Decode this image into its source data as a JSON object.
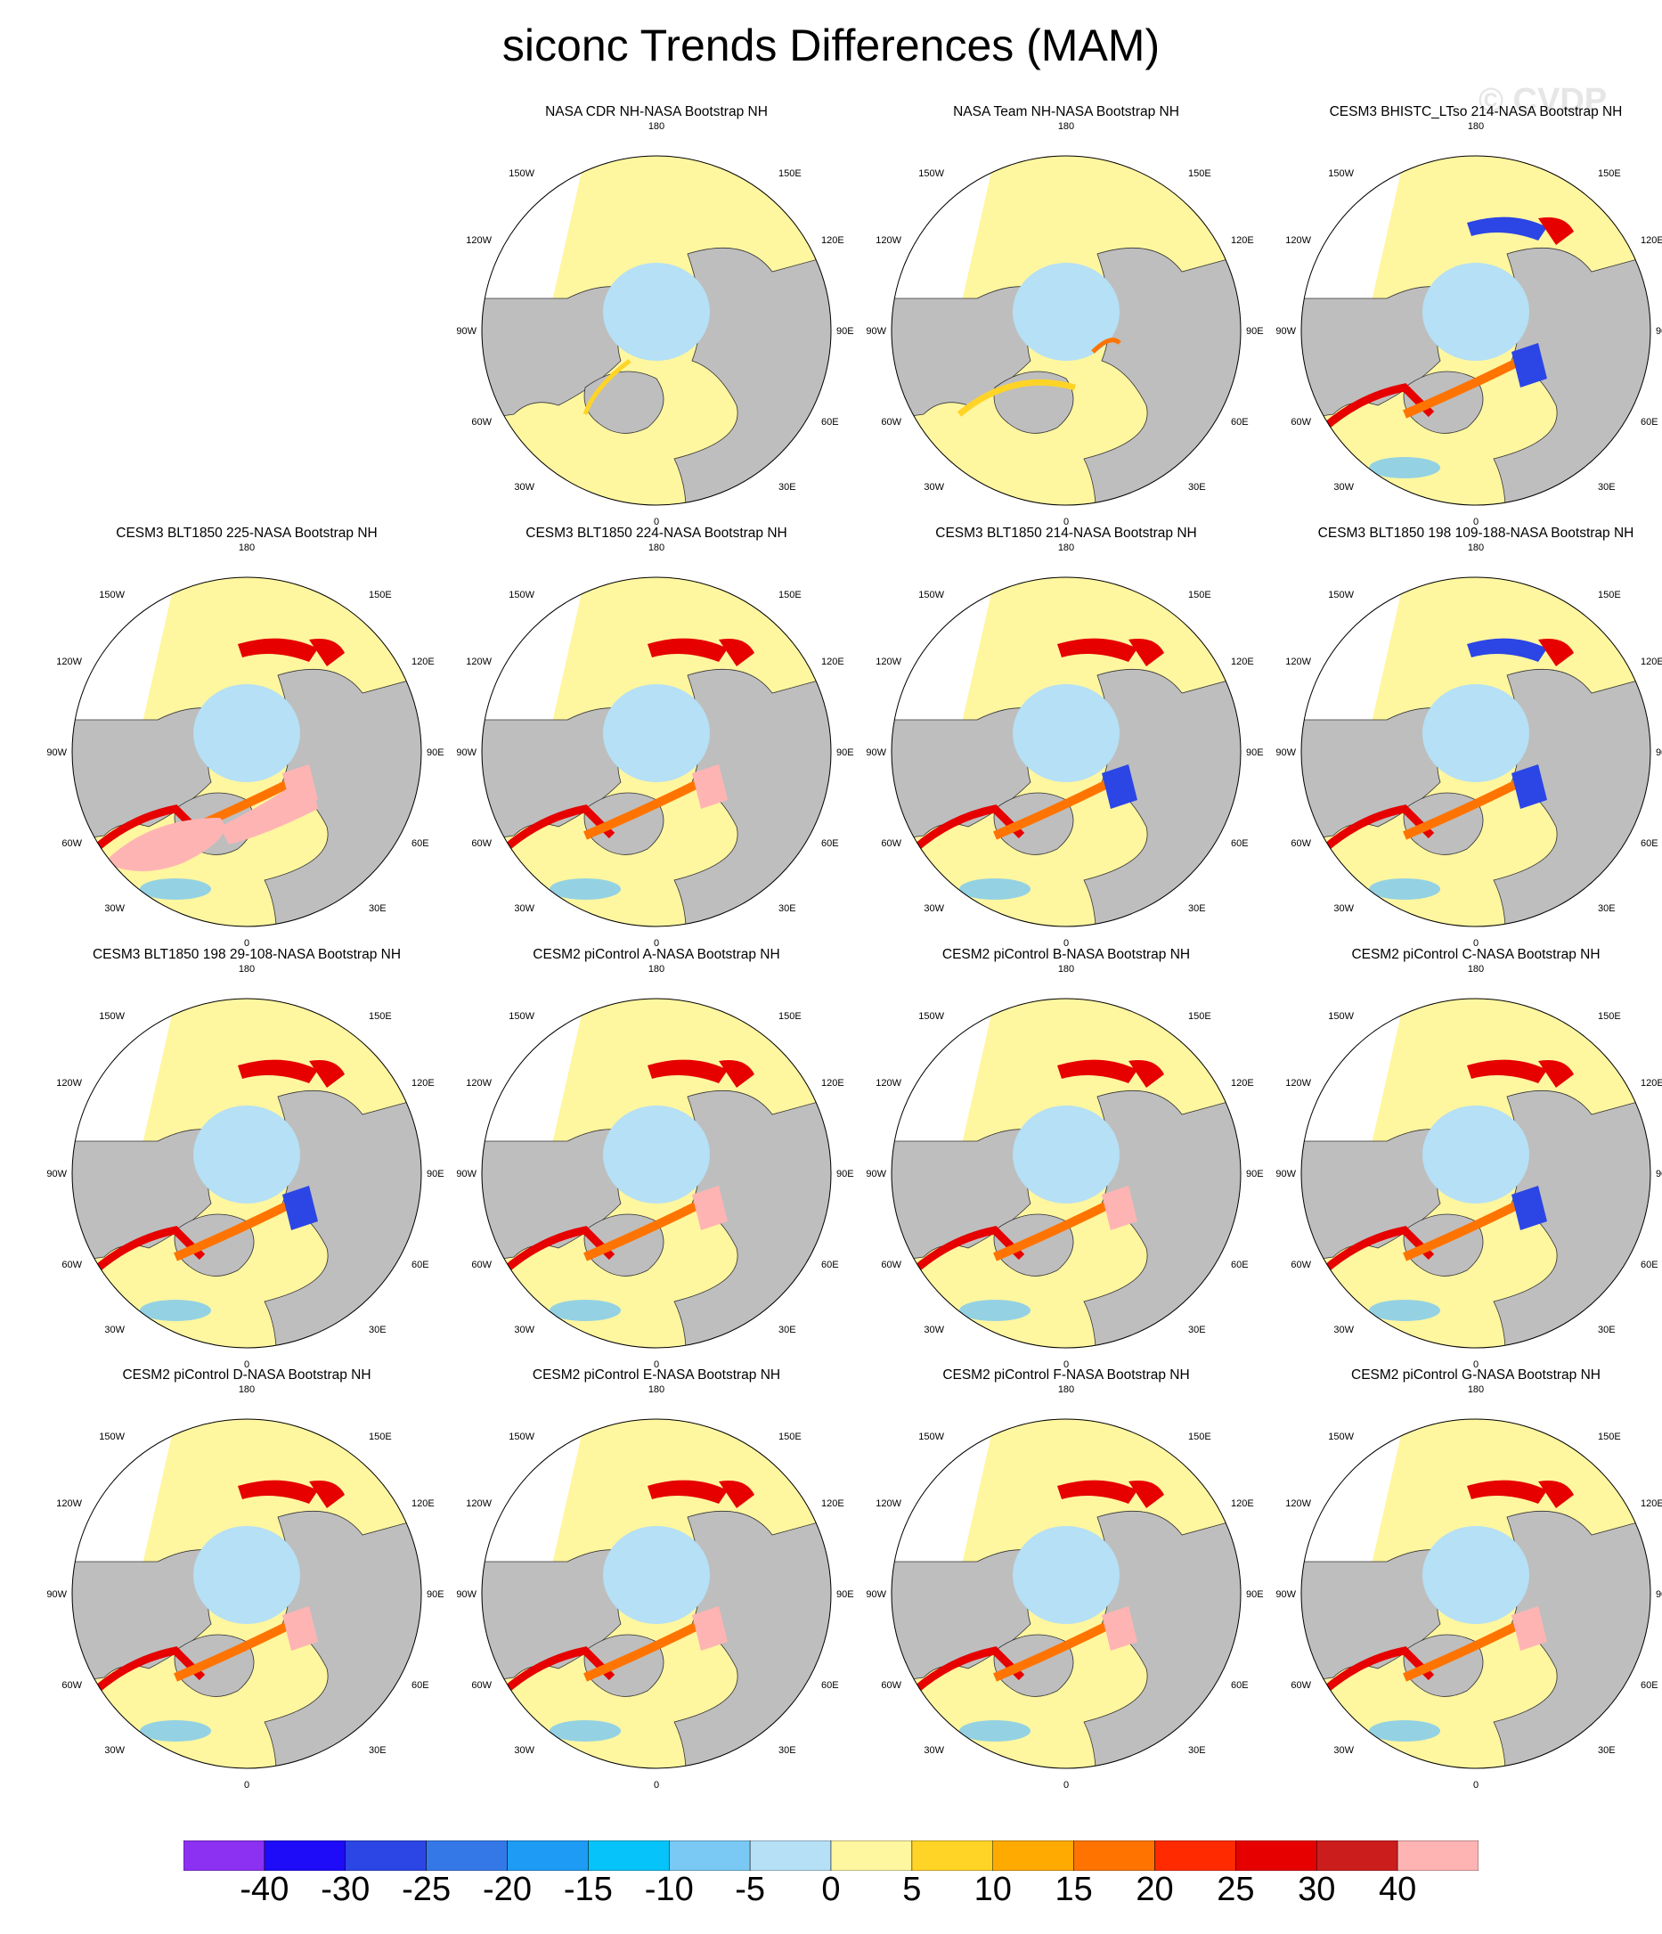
{
  "title": "siconc Trends Differences (MAM)",
  "watermark": "© CVDP",
  "lon_labels": {
    "top": "180",
    "bottom": "0",
    "l1": "150W",
    "l2": "120W",
    "l3": "90W",
    "l4": "60W",
    "l5": "30W",
    "r1": "150E",
    "r2": "120E",
    "r3": "90E",
    "r4": "60E",
    "r5": "30E"
  },
  "panels": [
    {
      "title": "NASA CDR NH-NASA Bootstrap NH",
      "style": "obs"
    },
    {
      "title": "NASA Team NH-NASA Bootstrap NH",
      "style": "obs2"
    },
    {
      "title": "CESM3 BHISTC_LTso 214-NASA Bootstrap NH",
      "style": "hist"
    },
    {
      "title": "CESM3 BLT1850 225-NASA Bootstrap NH",
      "style": "pinkheavy"
    },
    {
      "title": "CESM3 BLT1850 224-NASA Bootstrap NH",
      "style": "model"
    },
    {
      "title": "CESM3 BLT1850 214-NASA Bootstrap NH",
      "style": "modelblue"
    },
    {
      "title": "CESM3 BLT1850 198 109-188-NASA Bootstrap NH",
      "style": "hist"
    },
    {
      "title": "CESM3 BLT1850 198 29-108-NASA Bootstrap NH",
      "style": "modelblue"
    },
    {
      "title": "CESM2 piControl A-NASA Bootstrap NH",
      "style": "model"
    },
    {
      "title": "CESM2 piControl B-NASA Bootstrap NH",
      "style": "model"
    },
    {
      "title": "CESM2 piControl C-NASA Bootstrap NH",
      "style": "modelblue"
    },
    {
      "title": "CESM2 piControl D-NASA Bootstrap NH",
      "style": "model"
    },
    {
      "title": "CESM2 piControl E-NASA Bootstrap NH",
      "style": "model"
    },
    {
      "title": "CESM2 piControl F-NASA Bootstrap NH",
      "style": "model"
    },
    {
      "title": "CESM2 piControl G-NASA Bootstrap NH",
      "style": "model"
    }
  ],
  "colorbar": {
    "colors": [
      "#8c30f2",
      "#1e0bf7",
      "#2b46e5",
      "#3478e8",
      "#1e9bf4",
      "#06c3f9",
      "#79c9f4",
      "#b5e0f5",
      "#fff6a0",
      "#ffd426",
      "#ffaa00",
      "#ff7400",
      "#ff2a00",
      "#e60000",
      "#cc1d1d",
      "#ffb4b4"
    ],
    "labels": [
      "-40",
      "-30",
      "-25",
      "-20",
      "-15",
      "-10",
      "-5",
      "0",
      "5",
      "10",
      "15",
      "20",
      "25",
      "30",
      "40"
    ]
  }
}
